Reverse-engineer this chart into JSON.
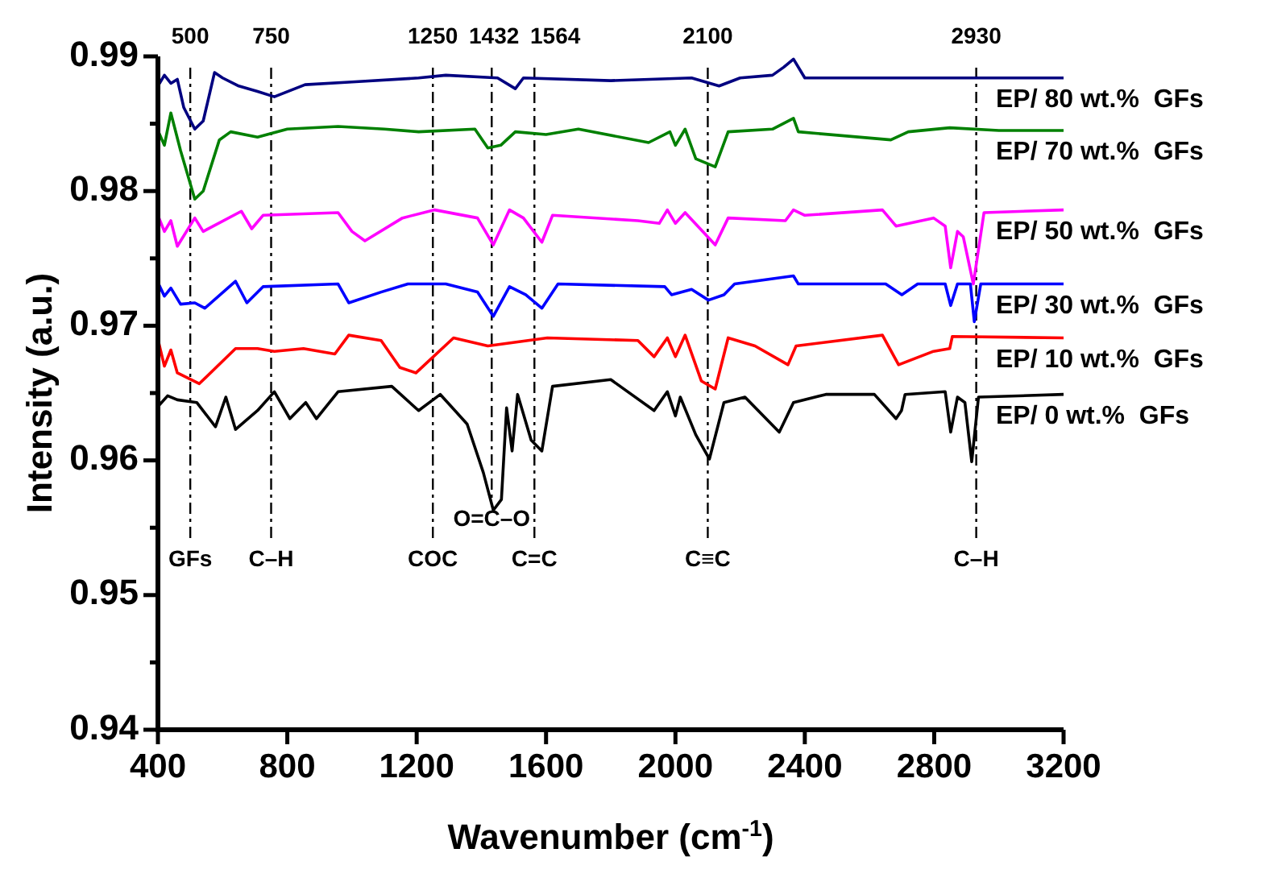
{
  "chart_data": {
    "type": "line",
    "xlabel": "Wavenumber (cm$^{-1}$)",
    "ylabel": "Intensity (a.u.)",
    "xlim": [
      400,
      3200
    ],
    "xticks": [
      400,
      800,
      1200,
      1600,
      2000,
      2400,
      2800,
      3200
    ],
    "ylim": [
      0.94,
      0.99
    ],
    "yticks": [
      0.94,
      {
        "value": 0.945,
        "label": null
      },
      0.95,
      {
        "value": 0.955,
        "label": null
      },
      0.96,
      {
        "value": 0.965,
        "label": null
      },
      0.97,
      {
        "value": 0.975,
        "label": null
      },
      0.98,
      {
        "value": 0.985,
        "label": null
      },
      0.99
    ],
    "series": [
      {
        "name": "EP/ 80 wt.%  GFs",
        "color": "#000080",
        "x": [
          400,
          420,
          440,
          460,
          480,
          514,
          540,
          575,
          600,
          650,
          708,
          760,
          855,
          1000,
          1206,
          1290,
          1450,
          1505,
          1530,
          1800,
          2050,
          2135,
          2200,
          2300,
          2335,
          2365,
          2400,
          2700,
          3000,
          3200
        ],
        "values": [
          0.9878,
          0.9886,
          0.988,
          0.9883,
          0.9862,
          0.9846,
          0.9852,
          0.9888,
          0.9884,
          0.9878,
          0.9874,
          0.987,
          0.9879,
          0.9881,
          0.9884,
          0.9886,
          0.9884,
          0.9876,
          0.9884,
          0.9882,
          0.9884,
          0.9878,
          0.9884,
          0.9886,
          0.9892,
          0.9898,
          0.9884,
          0.9884,
          0.9884,
          0.9884
        ]
      },
      {
        "name": "EP/ 70 wt.%  GFs",
        "color": "#008000",
        "x": [
          400,
          420,
          440,
          470,
          514,
          540,
          590,
          625,
          708,
          800,
          957,
          1100,
          1206,
          1380,
          1420,
          1460,
          1505,
          1600,
          1700,
          1917,
          1983,
          2000,
          2030,
          2063,
          2123,
          2163,
          2300,
          2365,
          2380,
          2666,
          2720,
          2848,
          3000,
          3200
        ],
        "values": [
          0.9845,
          0.9834,
          0.9858,
          0.983,
          0.9794,
          0.98,
          0.9838,
          0.9844,
          0.984,
          0.9846,
          0.9848,
          0.9846,
          0.9844,
          0.9846,
          0.9832,
          0.9834,
          0.9844,
          0.9842,
          0.9846,
          0.9836,
          0.9844,
          0.9834,
          0.9846,
          0.9824,
          0.9818,
          0.9844,
          0.9846,
          0.9854,
          0.9844,
          0.9838,
          0.9844,
          0.9847,
          0.9845,
          0.9845
        ]
      },
      {
        "name": "EP/ 50 wt.%  GFs",
        "color": "#ff00ff",
        "x": [
          400,
          420,
          440,
          460,
          514,
          540,
          658,
          690,
          725,
          957,
          1000,
          1040,
          1156,
          1256,
          1388,
          1437,
          1487,
          1530,
          1587,
          1620,
          1884,
          1950,
          1975,
          2000,
          2030,
          2123,
          2163,
          2340,
          2365,
          2400,
          2640,
          2682,
          2798,
          2834,
          2851,
          2872,
          2890,
          2921,
          2954,
          3200
        ],
        "values": [
          0.9782,
          0.977,
          0.9778,
          0.9759,
          0.978,
          0.977,
          0.9785,
          0.9772,
          0.9782,
          0.9784,
          0.977,
          0.9763,
          0.978,
          0.9786,
          0.978,
          0.976,
          0.9786,
          0.978,
          0.9762,
          0.9782,
          0.9778,
          0.9776,
          0.9786,
          0.9776,
          0.9784,
          0.976,
          0.978,
          0.9778,
          0.9786,
          0.9782,
          0.9786,
          0.9774,
          0.978,
          0.9774,
          0.9743,
          0.977,
          0.9766,
          0.9731,
          0.9784,
          0.9786
        ]
      },
      {
        "name": "EP/ 30 wt.%  GFs",
        "color": "#0000ff",
        "x": [
          400,
          420,
          440,
          470,
          514,
          545,
          640,
          675,
          725,
          957,
          990,
          1090,
          1173,
          1290,
          1388,
          1437,
          1487,
          1537,
          1587,
          1637,
          1967,
          1988,
          2050,
          2102,
          2150,
          2183,
          2365,
          2380,
          2650,
          2700,
          2749,
          2834,
          2851,
          2872,
          2912,
          2924,
          2944,
          3200
        ],
        "values": [
          0.9732,
          0.9722,
          0.9728,
          0.9716,
          0.9717,
          0.9713,
          0.9733,
          0.9717,
          0.9729,
          0.9731,
          0.9717,
          0.9725,
          0.9731,
          0.9731,
          0.9725,
          0.9707,
          0.9729,
          0.9723,
          0.9713,
          0.9731,
          0.9729,
          0.9723,
          0.9727,
          0.9719,
          0.9723,
          0.9731,
          0.9737,
          0.9731,
          0.9731,
          0.9723,
          0.9731,
          0.9731,
          0.9715,
          0.9731,
          0.9731,
          0.9703,
          0.9731,
          0.9731
        ]
      },
      {
        "name": "EP/ 10 wt.%  GFs",
        "color": "#ff0000",
        "x": [
          400,
          420,
          440,
          460,
          528,
          640,
          708,
          760,
          850,
          947,
          990,
          1090,
          1148,
          1198,
          1314,
          1420,
          1604,
          1884,
          1934,
          1975,
          2000,
          2030,
          2080,
          2123,
          2163,
          2246,
          2348,
          2373,
          2640,
          2690,
          2798,
          2848,
          2856,
          3200
        ],
        "values": [
          0.969,
          0.967,
          0.9682,
          0.9665,
          0.9657,
          0.9683,
          0.9683,
          0.9681,
          0.9683,
          0.9679,
          0.9693,
          0.9689,
          0.9669,
          0.9665,
          0.9691,
          0.9685,
          0.9691,
          0.9689,
          0.9677,
          0.9691,
          0.9677,
          0.9693,
          0.9659,
          0.9653,
          0.9691,
          0.9685,
          0.9671,
          0.9685,
          0.9693,
          0.9671,
          0.9681,
          0.9683,
          0.9692,
          0.9691
        ]
      },
      {
        "name": "EP/ 0 wt.%  GFs",
        "color": "#000000",
        "x": [
          400,
          430,
          460,
          520,
          578,
          610,
          640,
          708,
          760,
          808,
          857,
          890,
          957,
          1123,
          1206,
          1273,
          1356,
          1406,
          1437,
          1462,
          1478,
          1495,
          1512,
          1554,
          1587,
          1620,
          1800,
          1934,
          1975,
          2000,
          2015,
          2063,
          2105,
          2150,
          2215,
          2321,
          2365,
          2465,
          2615,
          2682,
          2699,
          2710,
          2834,
          2851,
          2872,
          2895,
          2916,
          2937,
          3200
        ],
        "values": [
          0.964,
          0.9648,
          0.9645,
          0.9643,
          0.9625,
          0.9647,
          0.9623,
          0.9637,
          0.9651,
          0.9631,
          0.9643,
          0.9631,
          0.9651,
          0.9655,
          0.9637,
          0.9649,
          0.9627,
          0.9591,
          0.9563,
          0.9571,
          0.9639,
          0.9607,
          0.9649,
          0.9615,
          0.9607,
          0.9655,
          0.966,
          0.9637,
          0.9651,
          0.9633,
          0.9647,
          0.9619,
          0.9601,
          0.9643,
          0.9647,
          0.9621,
          0.9643,
          0.9649,
          0.9649,
          0.9631,
          0.9637,
          0.9649,
          0.9651,
          0.9621,
          0.9647,
          0.9643,
          0.9599,
          0.9647,
          0.9649
        ]
      }
    ],
    "ref_lines": [
      {
        "axis": "x",
        "value": 500,
        "label": "500"
      },
      {
        "axis": "x",
        "value": 750,
        "label": "750"
      },
      {
        "axis": "x",
        "value": 1250,
        "label": "1250"
      },
      {
        "axis": "x",
        "value": 1432,
        "label": "1432"
      },
      {
        "axis": "x",
        "value": 1564,
        "label": "1564"
      },
      {
        "axis": "x",
        "value": 2100,
        "label": "2100"
      },
      {
        "axis": "x",
        "value": 2930,
        "label": "2930"
      }
    ],
    "annotations": [
      "GFs",
      "C–H",
      "COC",
      "O=C–O",
      "C=C",
      "C≡C",
      "C–H"
    ]
  }
}
